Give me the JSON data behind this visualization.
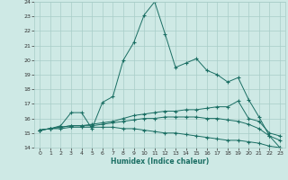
{
  "xlabel": "Humidex (Indice chaleur)",
  "xlim": [
    -0.5,
    23.5
  ],
  "ylim": [
    14,
    24
  ],
  "yticks": [
    14,
    15,
    16,
    17,
    18,
    19,
    20,
    21,
    22,
    23,
    24
  ],
  "xticks": [
    0,
    1,
    2,
    3,
    4,
    5,
    6,
    7,
    8,
    9,
    10,
    11,
    12,
    13,
    14,
    15,
    16,
    17,
    18,
    19,
    20,
    21,
    22,
    23
  ],
  "bg_color": "#cee9e5",
  "grid_color": "#a8cdc8",
  "line_color": "#1a6e63",
  "lines": [
    {
      "x": [
        0,
        1,
        2,
        3,
        4,
        5,
        6,
        7,
        8,
        9,
        10,
        11,
        12,
        13,
        14,
        15,
        16,
        17,
        18,
        19,
        20,
        21,
        22,
        23
      ],
      "y": [
        15.2,
        15.3,
        15.5,
        16.4,
        16.4,
        15.3,
        17.1,
        17.5,
        20.0,
        21.2,
        23.1,
        24.0,
        21.8,
        19.5,
        19.8,
        20.1,
        19.3,
        19.0,
        18.5,
        18.8,
        17.3,
        16.1,
        14.8,
        14.0
      ]
    },
    {
      "x": [
        0,
        1,
        2,
        3,
        4,
        5,
        6,
        7,
        8,
        9,
        10,
        11,
        12,
        13,
        14,
        15,
        16,
        17,
        18,
        19,
        20,
        21,
        22,
        23
      ],
      "y": [
        15.2,
        15.3,
        15.4,
        15.5,
        15.5,
        15.6,
        15.7,
        15.8,
        16.0,
        16.2,
        16.3,
        16.4,
        16.5,
        16.5,
        16.6,
        16.6,
        16.7,
        16.8,
        16.8,
        17.2,
        16.0,
        15.8,
        15.0,
        14.8
      ]
    },
    {
      "x": [
        0,
        1,
        2,
        3,
        4,
        5,
        6,
        7,
        8,
        9,
        10,
        11,
        12,
        13,
        14,
        15,
        16,
        17,
        18,
        19,
        20,
        21,
        22,
        23
      ],
      "y": [
        15.2,
        15.3,
        15.4,
        15.5,
        15.5,
        15.5,
        15.6,
        15.7,
        15.8,
        15.9,
        16.0,
        16.0,
        16.1,
        16.1,
        16.1,
        16.1,
        16.0,
        16.0,
        15.9,
        15.8,
        15.6,
        15.3,
        14.8,
        14.5
      ]
    },
    {
      "x": [
        0,
        1,
        2,
        3,
        4,
        5,
        6,
        7,
        8,
        9,
        10,
        11,
        12,
        13,
        14,
        15,
        16,
        17,
        18,
        19,
        20,
        21,
        22,
        23
      ],
      "y": [
        15.2,
        15.3,
        15.3,
        15.4,
        15.4,
        15.4,
        15.4,
        15.4,
        15.3,
        15.3,
        15.2,
        15.1,
        15.0,
        15.0,
        14.9,
        14.8,
        14.7,
        14.6,
        14.5,
        14.5,
        14.4,
        14.3,
        14.1,
        14.0
      ]
    }
  ]
}
